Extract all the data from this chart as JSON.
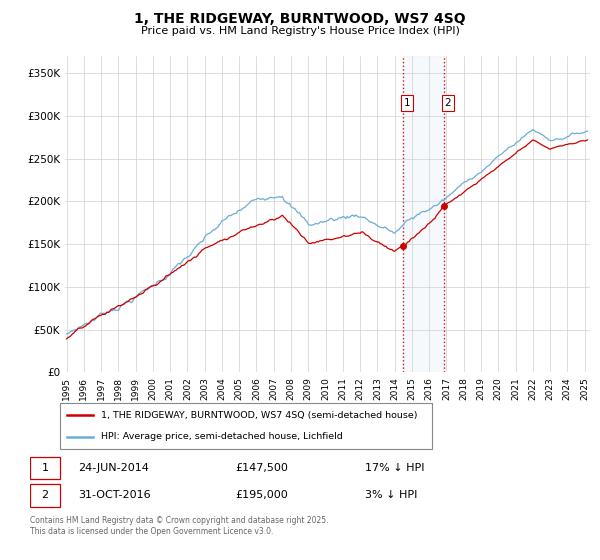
{
  "title": "1, THE RIDGEWAY, BURNTWOOD, WS7 4SQ",
  "subtitle": "Price paid vs. HM Land Registry's House Price Index (HPI)",
  "legend_line1": "1, THE RIDGEWAY, BURNTWOOD, WS7 4SQ (semi-detached house)",
  "legend_line2": "HPI: Average price, semi-detached house, Lichfield",
  "sale1_date": "24-JUN-2014",
  "sale1_price": 147500,
  "sale1_hpi_pct": "17% ↓ HPI",
  "sale2_date": "31-OCT-2016",
  "sale2_price": 195000,
  "sale2_hpi_pct": "3% ↓ HPI",
  "footer": "Contains HM Land Registry data © Crown copyright and database right 2025.\nThis data is licensed under the Open Government Licence v3.0.",
  "hpi_color": "#6baed6",
  "price_color": "#cc0000",
  "sale_marker_color": "#cc0000",
  "vline_color": "#cc0000",
  "highlight_fill": "#ddeeff",
  "ylim": [
    0,
    370000
  ],
  "yticks": [
    0,
    50000,
    100000,
    150000,
    200000,
    250000,
    300000,
    350000
  ],
  "ytick_labels": [
    "£0",
    "£50K",
    "£100K",
    "£150K",
    "£200K",
    "£250K",
    "£300K",
    "£350K"
  ],
  "start_year": 1995,
  "end_year": 2025,
  "sale1_t": 2014.478,
  "sale2_t": 2016.835
}
